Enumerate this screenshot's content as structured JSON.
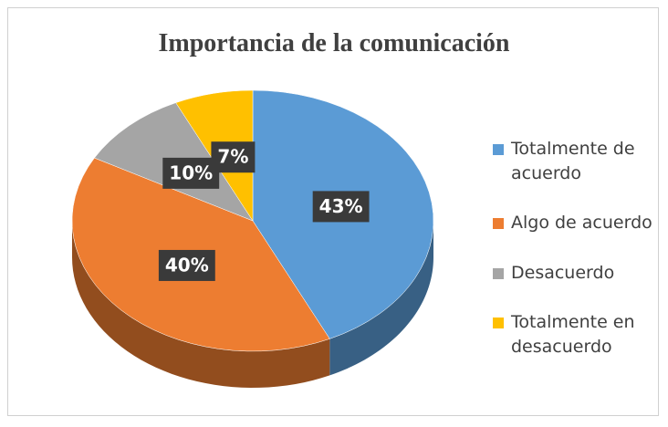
{
  "chart_data": {
    "type": "pie",
    "title": "Importancia de la comunicación",
    "categories": [
      "Totalmente de acuerdo",
      "Algo de acuerdo",
      "Desacuerdo",
      "Totalmente en desacuerdo"
    ],
    "values": [
      43,
      40,
      10,
      7
    ],
    "value_labels": [
      "43%",
      "40%",
      "10%",
      "7%"
    ],
    "colors": [
      "#5b9bd5",
      "#ed7d31",
      "#a5a5a5",
      "#ffc000"
    ],
    "legend": "right"
  }
}
